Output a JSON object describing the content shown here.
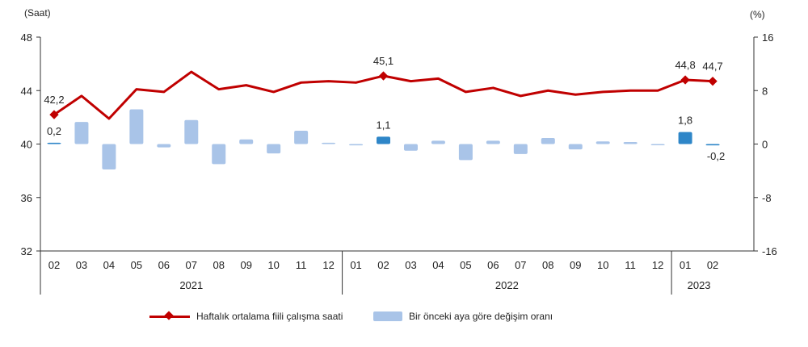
{
  "chart_data": {
    "type": "bar+line",
    "left_unit": "(Saat)",
    "right_unit": "(%)",
    "left_ticks": [
      32,
      36,
      40,
      44,
      48
    ],
    "right_ticks": [
      -16,
      -8,
      0,
      8,
      16
    ],
    "ylim_left": [
      32,
      48
    ],
    "ylim_right": [
      -16,
      16
    ],
    "categories": [
      "02",
      "03",
      "04",
      "05",
      "06",
      "07",
      "08",
      "09",
      "10",
      "11",
      "12",
      "01",
      "02",
      "03",
      "04",
      "05",
      "06",
      "07",
      "08",
      "09",
      "10",
      "11",
      "12",
      "01",
      "02"
    ],
    "year_groups": [
      {
        "label": "2021",
        "start": 0,
        "end": 10
      },
      {
        "label": "2022",
        "start": 11,
        "end": 22
      },
      {
        "label": "2023",
        "start": 23,
        "end": 24
      }
    ],
    "series": [
      {
        "name": "Haftalık ortalama fiili çalışma saati",
        "type": "line",
        "axis": "left",
        "color": "#C00000",
        "values": [
          42.2,
          43.6,
          41.9,
          44.1,
          43.9,
          45.4,
          44.1,
          44.4,
          43.9,
          44.6,
          44.7,
          44.6,
          45.1,
          44.7,
          44.9,
          43.9,
          44.2,
          43.6,
          44.0,
          43.7,
          43.9,
          44.0,
          44.0,
          44.8,
          44.7
        ],
        "labels": [
          {
            "index": 0,
            "text": "42,2"
          },
          {
            "index": 12,
            "text": "45,1"
          },
          {
            "index": 23,
            "text": "44,8"
          },
          {
            "index": 24,
            "text": "44,7"
          }
        ]
      },
      {
        "name": "Bir önceki aya göre değişim oranı",
        "type": "bar",
        "axis": "right",
        "color": "#A9C4E8",
        "highlight_color": "#2E86C8",
        "highlight": [
          0,
          12,
          23,
          24
        ],
        "values": [
          0.2,
          3.3,
          -3.8,
          5.2,
          -0.5,
          3.6,
          -3.0,
          0.7,
          -1.4,
          2.0,
          0.2,
          -0.2,
          1.1,
          -1.0,
          0.5,
          -2.4,
          0.5,
          -1.5,
          0.9,
          -0.8,
          0.4,
          0.3,
          0.0,
          1.8,
          -0.2
        ],
        "labels": [
          {
            "index": 0,
            "text": "0,2"
          },
          {
            "index": 12,
            "text": "1,1"
          },
          {
            "index": 23,
            "text": "1,8"
          },
          {
            "index": 24,
            "text": "-0,2"
          }
        ]
      }
    ]
  },
  "legend": {
    "line_label": "Haftalık ortalama fiili çalışma saati",
    "bar_label": "Bir önceki aya göre değişim oranı"
  }
}
